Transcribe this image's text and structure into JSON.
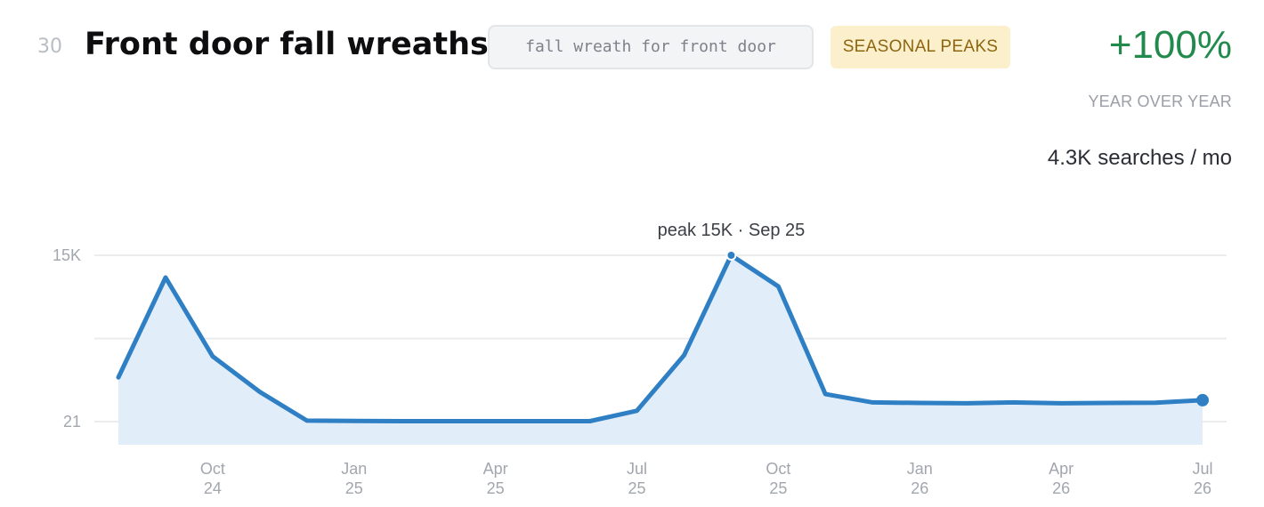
{
  "header": {
    "rank": "30",
    "title": "Front door fall wreaths",
    "query": "fall wreath for front door",
    "badge": "SEASONAL PEAKS"
  },
  "stats": {
    "growth": "+100%",
    "growth_label": "YEAR OVER YEAR",
    "volume_value": "4.3K",
    "volume_unit": "searches / mo"
  },
  "colors": {
    "line": "#2e7fc4",
    "area": "#e1edf8",
    "growth": "#218a4c",
    "badge_bg": "#fcf0cc",
    "badge_text": "#8e6510",
    "grid": "#ececee"
  },
  "chart_data": {
    "type": "area",
    "x": [
      "2024-08",
      "2024-09",
      "2024-10",
      "2024-11",
      "2024-12",
      "2025-01",
      "2025-02",
      "2025-03",
      "2025-04",
      "2025-05",
      "2025-06",
      "2025-07",
      "2025-08",
      "2025-09",
      "2025-10",
      "2025-11",
      "2025-12",
      "2026-01",
      "2026-02",
      "2026-03",
      "2026-04",
      "2026-05",
      "2026-06",
      "2026-07"
    ],
    "series": [
      {
        "values": [
          4000,
          13000,
          5900,
          2700,
          110,
          80,
          60,
          60,
          60,
          60,
          60,
          1000,
          6000,
          15000,
          12200,
          2500,
          1750,
          1700,
          1670,
          1750,
          1670,
          1700,
          1720,
          1950
        ]
      }
    ],
    "y_ticks": [
      {
        "value": 21,
        "label": "21"
      },
      {
        "value": 7500,
        "label": ""
      },
      {
        "value": 15000,
        "label": "15K"
      }
    ],
    "x_ticks": [
      {
        "month": "Oct",
        "year": "24",
        "index": 2
      },
      {
        "month": "Jan",
        "year": "25",
        "index": 5
      },
      {
        "month": "Apr",
        "year": "25",
        "index": 8
      },
      {
        "month": "Jul",
        "year": "25",
        "index": 11
      },
      {
        "month": "Oct",
        "year": "25",
        "index": 14
      },
      {
        "month": "Jan",
        "year": "26",
        "index": 17
      },
      {
        "month": "Apr",
        "year": "26",
        "index": 20
      },
      {
        "month": "Jul",
        "year": "26",
        "index": 23
      }
    ],
    "ylim": [
      21,
      15000
    ],
    "peak_label": "peak 15K · Sep 25",
    "peak_index": 13,
    "grid": true
  }
}
